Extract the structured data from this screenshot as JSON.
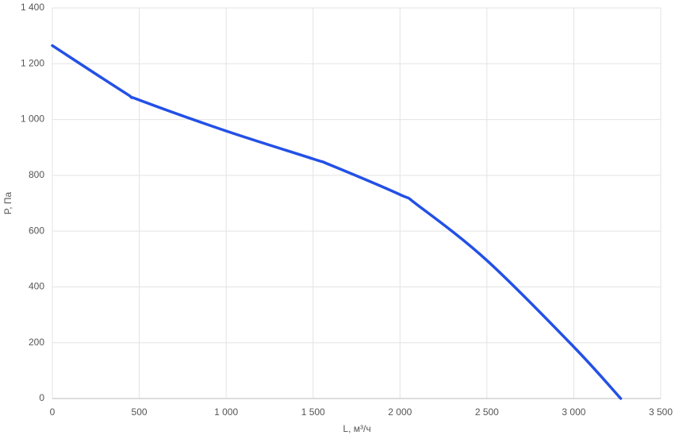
{
  "chart_data": {
    "type": "line",
    "x_label": "L, м³/ч",
    "y_label": "P, Па",
    "x": [
      0,
      420,
      500,
      1000,
      1500,
      1600,
      2000,
      2100,
      2500,
      3000,
      3270
    ],
    "series": [
      {
        "color": "#2350e6",
        "values": [
          1265,
          1095,
          1070,
          959,
          859,
          837,
          731,
          694,
          495,
          185,
          0
        ]
      }
    ],
    "xlim": [
      0,
      3500
    ],
    "xticks": [
      0,
      500,
      {
        "value": 1000,
        "label": "1 000"
      },
      {
        "value": 1500,
        "label": "1 500"
      },
      {
        "value": 2000,
        "label": "2 000"
      },
      {
        "value": 2500,
        "label": "2 500"
      },
      {
        "value": 3000,
        "label": "3 000"
      },
      {
        "value": 3500,
        "label": "3 500"
      }
    ],
    "ylim": [
      0,
      1400
    ],
    "yticks": [
      0,
      200,
      400,
      600,
      800,
      {
        "value": 1000,
        "label": "1 000"
      },
      {
        "value": 1200,
        "label": "1 200"
      },
      {
        "value": 1400,
        "label": "1 400"
      }
    ],
    "grid": true
  }
}
